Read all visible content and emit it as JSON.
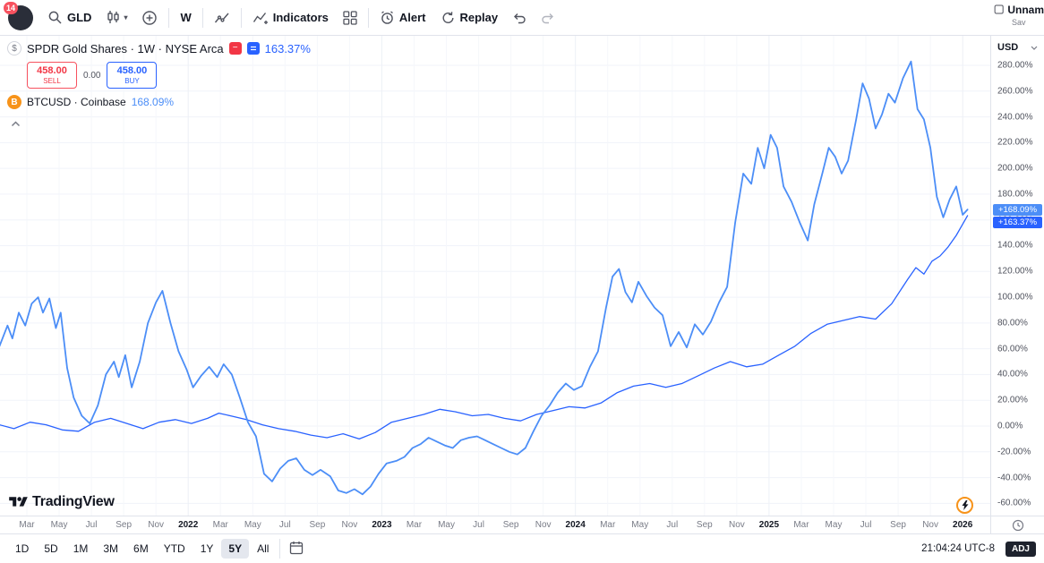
{
  "toolbar": {
    "avatar_badge": "14",
    "symbol": "GLD",
    "interval": "W",
    "indicators_label": "Indicators",
    "alert_label": "Alert",
    "replay_label": "Replay",
    "layout_name": "Unnam",
    "layout_saved": "Sav"
  },
  "legend": {
    "main_symbol_glyph": "$",
    "main_title": "SPDR Gold Shares · 1W · NYSE Arca",
    "main_change": "163.37%",
    "sell_price": "458.00",
    "sell_label": "SELL",
    "spread": "0.00",
    "buy_price": "458.00",
    "buy_label": "BUY",
    "compare_symbol_glyph": "B",
    "compare_title": "BTCUSD · Coinbase",
    "compare_change": "168.09%"
  },
  "watermark": "TradingView",
  "axis": {
    "currency": "USD",
    "badges": [
      {
        "label": "+168.09%",
        "value": 168.09,
        "color": "#4c8ef7"
      },
      {
        "label": "+163.37%",
        "value": 163.37,
        "color": "#2962ff"
      }
    ]
  },
  "bottom_bar": {
    "ranges": [
      "1D",
      "5D",
      "1M",
      "3M",
      "6M",
      "YTD",
      "1Y",
      "5Y",
      "All"
    ],
    "active_range": "5Y",
    "clock": "21:04:24 UTC-8",
    "adjust_label": "ADJ"
  },
  "chart_data": {
    "type": "line",
    "x_unit": "months since 2021-01",
    "ylim": [
      -69.5,
      303
    ],
    "grid": true,
    "x_ticks": [
      {
        "m": 2,
        "label": "Mar"
      },
      {
        "m": 4,
        "label": "May"
      },
      {
        "m": 6,
        "label": "Jul"
      },
      {
        "m": 8,
        "label": "Sep"
      },
      {
        "m": 10,
        "label": "Nov"
      },
      {
        "m": 12,
        "label": "2022",
        "year": true
      },
      {
        "m": 14,
        "label": "Mar"
      },
      {
        "m": 16,
        "label": "May"
      },
      {
        "m": 18,
        "label": "Jul"
      },
      {
        "m": 20,
        "label": "Sep"
      },
      {
        "m": 22,
        "label": "Nov"
      },
      {
        "m": 24,
        "label": "2023",
        "year": true
      },
      {
        "m": 26,
        "label": "Mar"
      },
      {
        "m": 28,
        "label": "May"
      },
      {
        "m": 30,
        "label": "Jul"
      },
      {
        "m": 32,
        "label": "Sep"
      },
      {
        "m": 34,
        "label": "Nov"
      },
      {
        "m": 36,
        "label": "2024",
        "year": true
      },
      {
        "m": 38,
        "label": "Mar"
      },
      {
        "m": 40,
        "label": "May"
      },
      {
        "m": 42,
        "label": "Jul"
      },
      {
        "m": 44,
        "label": "Sep"
      },
      {
        "m": 46,
        "label": "Nov"
      },
      {
        "m": 48,
        "label": "2025",
        "year": true
      },
      {
        "m": 50,
        "label": "Mar"
      },
      {
        "m": 52,
        "label": "May"
      },
      {
        "m": 54,
        "label": "Jul"
      },
      {
        "m": 56,
        "label": "Sep"
      },
      {
        "m": 58,
        "label": "Nov"
      },
      {
        "m": 60,
        "label": "2026",
        "year": true
      }
    ],
    "y_ticks": [
      {
        "v": 280,
        "label": "280.00%"
      },
      {
        "v": 260,
        "label": "260.00%"
      },
      {
        "v": 240,
        "label": "240.00%"
      },
      {
        "v": 220,
        "label": "220.00%"
      },
      {
        "v": 200,
        "label": "200.00%"
      },
      {
        "v": 180,
        "label": "180.00%"
      },
      {
        "v": 160,
        "label": "160.00%"
      },
      {
        "v": 140,
        "label": "140.00%"
      },
      {
        "v": 120,
        "label": "120.00%"
      },
      {
        "v": 100,
        "label": "100.00%"
      },
      {
        "v": 80,
        "label": "80.00%"
      },
      {
        "v": 60,
        "label": "60.00%"
      },
      {
        "v": 40,
        "label": "40.00%"
      },
      {
        "v": 20,
        "label": "20.00%"
      },
      {
        "v": 0,
        "label": "0.00%"
      },
      {
        "v": -20,
        "label": "-20.00%"
      },
      {
        "v": -40,
        "label": "-40.00%"
      },
      {
        "v": -60,
        "label": "-60.00%"
      }
    ],
    "series": [
      {
        "name": "BTCUSD · Coinbase",
        "color": "#4c8ef7",
        "width": 1.8,
        "final_change_pct": 168.09,
        "points": [
          [
            0.3,
            62
          ],
          [
            0.8,
            78
          ],
          [
            1.1,
            68
          ],
          [
            1.5,
            88
          ],
          [
            1.9,
            78
          ],
          [
            2.3,
            95
          ],
          [
            2.7,
            100
          ],
          [
            3.0,
            88
          ],
          [
            3.4,
            99
          ],
          [
            3.8,
            76
          ],
          [
            4.1,
            88
          ],
          [
            4.5,
            45
          ],
          [
            4.9,
            22
          ],
          [
            5.4,
            8
          ],
          [
            5.9,
            2
          ],
          [
            6.4,
            16
          ],
          [
            6.9,
            40
          ],
          [
            7.4,
            50
          ],
          [
            7.7,
            38
          ],
          [
            8.1,
            55
          ],
          [
            8.5,
            30
          ],
          [
            9.0,
            50
          ],
          [
            9.5,
            80
          ],
          [
            10.0,
            96
          ],
          [
            10.4,
            105
          ],
          [
            10.9,
            80
          ],
          [
            11.4,
            58
          ],
          [
            11.9,
            44
          ],
          [
            12.3,
            30
          ],
          [
            12.8,
            39
          ],
          [
            13.3,
            46
          ],
          [
            13.8,
            38
          ],
          [
            14.2,
            48
          ],
          [
            14.7,
            40
          ],
          [
            15.2,
            22
          ],
          [
            15.7,
            3
          ],
          [
            16.2,
            -8
          ],
          [
            16.7,
            -37
          ],
          [
            17.2,
            -43
          ],
          [
            17.7,
            -33
          ],
          [
            18.2,
            -27
          ],
          [
            18.7,
            -25
          ],
          [
            19.2,
            -34
          ],
          [
            19.7,
            -38
          ],
          [
            20.2,
            -34
          ],
          [
            20.8,
            -39
          ],
          [
            21.3,
            -50
          ],
          [
            21.8,
            -52
          ],
          [
            22.3,
            -49
          ],
          [
            22.8,
            -53
          ],
          [
            23.3,
            -47
          ],
          [
            23.8,
            -37
          ],
          [
            24.3,
            -29
          ],
          [
            24.9,
            -27
          ],
          [
            25.4,
            -24
          ],
          [
            25.9,
            -17
          ],
          [
            26.4,
            -14
          ],
          [
            26.9,
            -9
          ],
          [
            27.4,
            -12
          ],
          [
            27.9,
            -15
          ],
          [
            28.4,
            -17
          ],
          [
            28.9,
            -11
          ],
          [
            29.4,
            -9
          ],
          [
            29.9,
            -8
          ],
          [
            30.4,
            -11
          ],
          [
            30.9,
            -14
          ],
          [
            31.4,
            -17
          ],
          [
            31.9,
            -20
          ],
          [
            32.4,
            -22
          ],
          [
            32.9,
            -17
          ],
          [
            33.4,
            -4
          ],
          [
            33.9,
            8
          ],
          [
            34.4,
            16
          ],
          [
            34.9,
            26
          ],
          [
            35.4,
            33
          ],
          [
            35.9,
            28
          ],
          [
            36.4,
            31
          ],
          [
            36.9,
            46
          ],
          [
            37.4,
            58
          ],
          [
            37.9,
            92
          ],
          [
            38.3,
            116
          ],
          [
            38.7,
            122
          ],
          [
            39.1,
            104
          ],
          [
            39.5,
            96
          ],
          [
            39.9,
            112
          ],
          [
            40.4,
            101
          ],
          [
            40.9,
            92
          ],
          [
            41.4,
            86
          ],
          [
            41.9,
            62
          ],
          [
            42.4,
            73
          ],
          [
            42.9,
            61
          ],
          [
            43.4,
            79
          ],
          [
            43.9,
            71
          ],
          [
            44.4,
            81
          ],
          [
            44.9,
            96
          ],
          [
            45.4,
            108
          ],
          [
            45.9,
            158
          ],
          [
            46.4,
            196
          ],
          [
            46.9,
            188
          ],
          [
            47.3,
            216
          ],
          [
            47.7,
            200
          ],
          [
            48.1,
            226
          ],
          [
            48.5,
            216
          ],
          [
            48.9,
            186
          ],
          [
            49.4,
            174
          ],
          [
            49.9,
            158
          ],
          [
            50.4,
            144
          ],
          [
            50.8,
            172
          ],
          [
            51.3,
            196
          ],
          [
            51.7,
            216
          ],
          [
            52.1,
            209
          ],
          [
            52.5,
            196
          ],
          [
            52.9,
            206
          ],
          [
            53.4,
            238
          ],
          [
            53.8,
            266
          ],
          [
            54.2,
            254
          ],
          [
            54.6,
            231
          ],
          [
            55.0,
            242
          ],
          [
            55.4,
            258
          ],
          [
            55.8,
            251
          ],
          [
            56.3,
            270
          ],
          [
            56.8,
            283
          ],
          [
            57.2,
            246
          ],
          [
            57.6,
            238
          ],
          [
            58.0,
            216
          ],
          [
            58.4,
            178
          ],
          [
            58.8,
            162
          ],
          [
            59.2,
            176
          ],
          [
            59.6,
            186
          ],
          [
            60.0,
            164
          ],
          [
            60.3,
            168.09
          ]
        ]
      },
      {
        "name": "SPDR Gold Shares (GLD)",
        "color": "#2962ff",
        "width": 1.3,
        "final_change_pct": 163.37,
        "points": [
          [
            0.3,
            1
          ],
          [
            1.2,
            -2
          ],
          [
            2.2,
            3
          ],
          [
            3.2,
            1
          ],
          [
            4.2,
            -3
          ],
          [
            5.2,
            -4
          ],
          [
            6.2,
            3
          ],
          [
            7.2,
            6
          ],
          [
            8.2,
            2
          ],
          [
            9.2,
            -2
          ],
          [
            10.2,
            3
          ],
          [
            11.2,
            5
          ],
          [
            12.2,
            2
          ],
          [
            13.2,
            6
          ],
          [
            13.9,
            10
          ],
          [
            14.6,
            8
          ],
          [
            15.6,
            5
          ],
          [
            16.6,
            1
          ],
          [
            17.6,
            -2
          ],
          [
            18.6,
            -4
          ],
          [
            19.6,
            -7
          ],
          [
            20.6,
            -9
          ],
          [
            21.6,
            -6
          ],
          [
            22.6,
            -10
          ],
          [
            23.6,
            -5
          ],
          [
            24.6,
            3
          ],
          [
            25.6,
            6
          ],
          [
            26.6,
            9
          ],
          [
            27.6,
            13
          ],
          [
            28.6,
            11
          ],
          [
            29.6,
            8
          ],
          [
            30.6,
            9
          ],
          [
            31.6,
            6
          ],
          [
            32.6,
            4
          ],
          [
            33.6,
            9
          ],
          [
            34.6,
            12
          ],
          [
            35.6,
            15
          ],
          [
            36.6,
            14
          ],
          [
            37.6,
            18
          ],
          [
            38.6,
            26
          ],
          [
            39.6,
            31
          ],
          [
            40.6,
            33
          ],
          [
            41.6,
            30
          ],
          [
            42.6,
            33
          ],
          [
            43.6,
            39
          ],
          [
            44.6,
            45
          ],
          [
            45.6,
            50
          ],
          [
            46.6,
            46
          ],
          [
            47.6,
            48
          ],
          [
            48.6,
            55
          ],
          [
            49.6,
            62
          ],
          [
            50.6,
            72
          ],
          [
            51.6,
            79
          ],
          [
            52.6,
            82
          ],
          [
            53.6,
            85
          ],
          [
            54.6,
            83
          ],
          [
            55.6,
            95
          ],
          [
            56.6,
            114
          ],
          [
            57.1,
            123
          ],
          [
            57.6,
            118
          ],
          [
            58.1,
            128
          ],
          [
            58.6,
            132
          ],
          [
            59.1,
            139
          ],
          [
            59.6,
            148
          ],
          [
            60.3,
            163.37
          ]
        ]
      }
    ]
  }
}
